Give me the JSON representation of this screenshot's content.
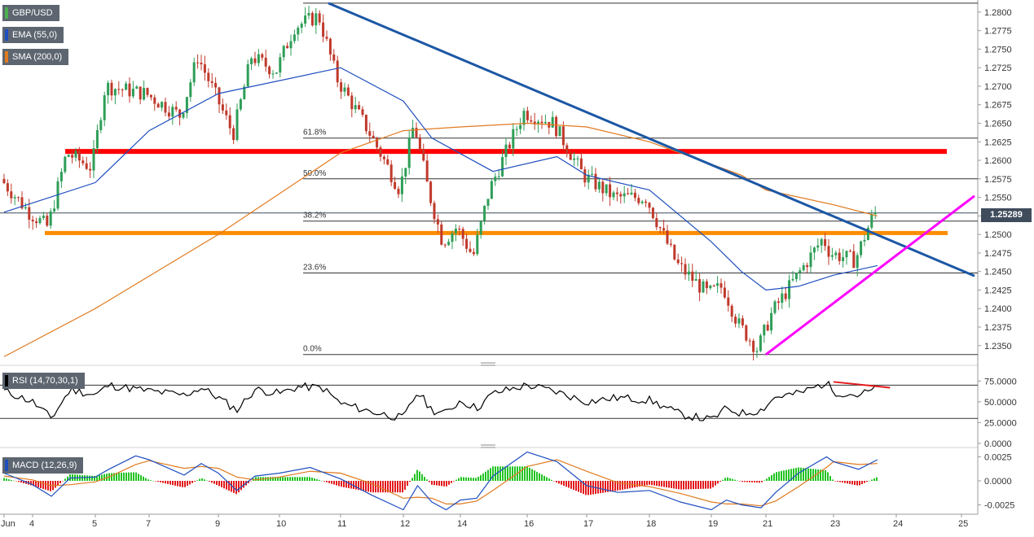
{
  "main_panel": {
    "legend": [
      {
        "label": "GBP/USD",
        "color": "#4caf50"
      },
      {
        "label": "EMA (55,0)",
        "color": "#1f4fbf"
      },
      {
        "label": "SMA (200,0)",
        "color": "#e07a1f"
      }
    ],
    "last_price": "1.25289"
  },
  "rsi_panel": {
    "label": "RSI (14,70,30,1)",
    "color": "#000000"
  },
  "macd_panel": {
    "label": "MACD (12,26,9)",
    "color": "#1f4fbf"
  },
  "colors": {
    "bull_candle": "#2e9e57",
    "bear_candle": "#c0392b",
    "ema": "#1f4fbf",
    "sma": "#e07a1f",
    "trendline_down": "#1c57a5",
    "trendline_up": "#ff00ff",
    "resistance": "#ff0000",
    "support": "#ff8c00",
    "rsi_divergence": "#e31a1c",
    "macd_line": "#1f4fbf",
    "signal_line": "#e07a1f",
    "hist_pos": "#22c322",
    "hist_neg": "#e31a1c"
  },
  "chart_data": [
    {
      "type": "candlestick",
      "series_name": "GBP/USD",
      "x_tick_labels": [
        "Jun",
        "4",
        "5",
        "7",
        "9",
        "10",
        "11",
        "12",
        "14",
        "16",
        "17",
        "18",
        "19",
        "21",
        "23",
        "24",
        "25"
      ],
      "y_ticks": [
        1.235,
        1.2375,
        1.24,
        1.2425,
        1.245,
        1.2475,
        1.25,
        1.2525,
        1.255,
        1.2575,
        1.26,
        1.2625,
        1.265,
        1.2675,
        1.27,
        1.2725,
        1.275,
        1.2775,
        1.28
      ],
      "y_tick_labels": [
        "1.2350",
        "1.2375",
        "1.2400",
        "1.2425",
        "1.2450",
        "1.2475",
        "1.2500",
        "1.2525",
        "1.2550",
        "1.2575",
        "1.2600",
        "1.2625",
        "1.2650",
        "1.2675",
        "1.2700",
        "1.2725",
        "1.2750",
        "1.2775",
        "1.2800"
      ],
      "ylim": [
        1.233,
        1.2813
      ],
      "anchors": [
        {
          "x": "Jun",
          "price": 1.2575
        },
        {
          "x": "4",
          "price": 1.253
        },
        {
          "x": "4.3",
          "price": 1.251
        },
        {
          "x": "4.6",
          "price": 1.261
        },
        {
          "x": "5",
          "price": 1.259
        },
        {
          "x": "5.5",
          "price": 1.27
        },
        {
          "x": "7",
          "price": 1.269
        },
        {
          "x": "8",
          "price": 1.266
        },
        {
          "x": "8.5",
          "price": 1.274
        },
        {
          "x": "9",
          "price": 1.269
        },
        {
          "x": "9.3",
          "price": 1.2635
        },
        {
          "x": "9.6",
          "price": 1.274
        },
        {
          "x": "10",
          "price": 1.272
        },
        {
          "x": "10.3",
          "price": 1.278
        },
        {
          "x": "10.7",
          "price": 1.2795
        },
        {
          "x": "11",
          "price": 1.271
        },
        {
          "x": "11.5",
          "price": 1.264
        },
        {
          "x": "12",
          "price": 1.256
        },
        {
          "x": "12.5",
          "price": 1.265
        },
        {
          "x": "13",
          "price": 1.256
        },
        {
          "x": "13.5",
          "price": 1.249
        },
        {
          "x": "14",
          "price": 1.251
        },
        {
          "x": "14.5",
          "price": 1.247
        },
        {
          "x": "15",
          "price": 1.256
        },
        {
          "x": "16",
          "price": 1.2665
        },
        {
          "x": "16.5",
          "price": 1.265
        },
        {
          "x": "17",
          "price": 1.258
        },
        {
          "x": "17.5",
          "price": 1.255
        },
        {
          "x": "18",
          "price": 1.255
        },
        {
          "x": "18.5",
          "price": 1.246
        },
        {
          "x": "19",
          "price": 1.242
        },
        {
          "x": "19.5",
          "price": 1.243
        },
        {
          "x": "20",
          "price": 1.238
        },
        {
          "x": "20.8",
          "price": 1.2345
        },
        {
          "x": "21.3",
          "price": 1.2395
        },
        {
          "x": "22",
          "price": 1.244
        },
        {
          "x": "22.8",
          "price": 1.2495
        },
        {
          "x": "23",
          "price": 1.2475
        },
        {
          "x": "23.4",
          "price": 1.2465
        },
        {
          "x": "23.7",
          "price": 1.2529
        }
      ],
      "ema_55_anchors": [
        {
          "x": "Jun",
          "price": 1.253
        },
        {
          "x": "5",
          "price": 1.257
        },
        {
          "x": "7",
          "price": 1.264
        },
        {
          "x": "9",
          "price": 1.269
        },
        {
          "x": "11",
          "price": 1.2725
        },
        {
          "x": "12",
          "price": 1.268
        },
        {
          "x": "13",
          "price": 1.263
        },
        {
          "x": "15",
          "price": 1.2585
        },
        {
          "x": "16.5",
          "price": 1.2605
        },
        {
          "x": "17",
          "price": 1.258
        },
        {
          "x": "18",
          "price": 1.256
        },
        {
          "x": "19",
          "price": 1.249
        },
        {
          "x": "20",
          "price": 1.245
        },
        {
          "x": "21",
          "price": 1.2425
        },
        {
          "x": "22",
          "price": 1.243
        },
        {
          "x": "23",
          "price": 1.2445
        },
        {
          "x": "23.7",
          "price": 1.2458
        }
      ],
      "sma_200_anchors": [
        {
          "x": "Jun",
          "price": 1.2335
        },
        {
          "x": "5",
          "price": 1.24
        },
        {
          "x": "9",
          "price": 1.25
        },
        {
          "x": "11",
          "price": 1.261
        },
        {
          "x": "12",
          "price": 1.264
        },
        {
          "x": "14",
          "price": 1.2645
        },
        {
          "x": "16",
          "price": 1.265
        },
        {
          "x": "17",
          "price": 1.2645
        },
        {
          "x": "18",
          "price": 1.2625
        },
        {
          "x": "20",
          "price": 1.258
        },
        {
          "x": "21",
          "price": 1.256
        },
        {
          "x": "23",
          "price": 1.254
        },
        {
          "x": "23.7",
          "price": 1.2525
        }
      ],
      "fibonacci_levels": [
        {
          "label": "61.8%",
          "price": 1.263
        },
        {
          "label": "50.0%",
          "price": 1.2575
        },
        {
          "label": "38.2%",
          "price": 1.2518
        },
        {
          "label": "23.6%",
          "price": 1.2448
        },
        {
          "label": "0.0%",
          "price": 1.2338
        }
      ],
      "fib_100_price": 1.2812,
      "horizontal_levels": [
        {
          "role": "resistance",
          "price": 1.2612
        },
        {
          "role": "support",
          "price": 1.2502
        },
        {
          "role": "last_price",
          "price": 1.25289
        }
      ],
      "trendlines": [
        {
          "role": "downtrend",
          "from": {
            "x": "10.8",
            "price": 1.2812
          },
          "to": {
            "x": "25.2",
            "price": 1.2444
          }
        },
        {
          "role": "uptrend",
          "from": {
            "x": "21",
            "price": 1.2338
          },
          "to": {
            "x": "25.2",
            "price": 1.2552
          }
        }
      ]
    },
    {
      "type": "line",
      "series_name": "RSI (14,70,30,1)",
      "y_ticks": [
        0,
        25,
        50,
        75
      ],
      "y_tick_labels": [
        "0.0000",
        "25.0000",
        "50.0000",
        "75.0000"
      ],
      "ylim": [
        -3,
        88
      ],
      "levels": [
        70,
        30
      ],
      "anchors": [
        {
          "x": "Jun",
          "value": 63
        },
        {
          "x": "4",
          "value": 50
        },
        {
          "x": "4.3",
          "value": 30
        },
        {
          "x": "4.6",
          "value": 65
        },
        {
          "x": "5",
          "value": 58
        },
        {
          "x": "5.5",
          "value": 70
        },
        {
          "x": "7",
          "value": 63
        },
        {
          "x": "8",
          "value": 58
        },
        {
          "x": "8.5",
          "value": 67
        },
        {
          "x": "9",
          "value": 55
        },
        {
          "x": "9.3",
          "value": 40
        },
        {
          "x": "9.6",
          "value": 65
        },
        {
          "x": "10",
          "value": 60
        },
        {
          "x": "10.3",
          "value": 68
        },
        {
          "x": "10.7",
          "value": 67
        },
        {
          "x": "11",
          "value": 48
        },
        {
          "x": "11.5",
          "value": 38
        },
        {
          "x": "12",
          "value": 30
        },
        {
          "x": "12.5",
          "value": 62
        },
        {
          "x": "13",
          "value": 40
        },
        {
          "x": "13.5",
          "value": 36
        },
        {
          "x": "14",
          "value": 52
        },
        {
          "x": "14.5",
          "value": 42
        },
        {
          "x": "15",
          "value": 60
        },
        {
          "x": "16",
          "value": 70
        },
        {
          "x": "16.5",
          "value": 62
        },
        {
          "x": "17",
          "value": 50
        },
        {
          "x": "17.5",
          "value": 55
        },
        {
          "x": "18",
          "value": 52
        },
        {
          "x": "18.5",
          "value": 35
        },
        {
          "x": "19",
          "value": 28
        },
        {
          "x": "19.5",
          "value": 42
        },
        {
          "x": "20",
          "value": 36
        },
        {
          "x": "20.8",
          "value": 40
        },
        {
          "x": "21.3",
          "value": 56
        },
        {
          "x": "22",
          "value": 60
        },
        {
          "x": "22.8",
          "value": 73
        },
        {
          "x": "23",
          "value": 62
        },
        {
          "x": "23.4",
          "value": 58
        },
        {
          "x": "23.7",
          "value": 66
        }
      ],
      "divergence_line": {
        "from": {
          "x": "23",
          "value": 74
        },
        "to": {
          "x": "23.9",
          "value": 67
        }
      }
    },
    {
      "type": "line",
      "series_name": "MACD (12,26,9)",
      "y_ticks": [
        -0.0025,
        0,
        0.0025
      ],
      "y_tick_labels": [
        "-0.0025",
        "0.0000",
        "0.0025"
      ],
      "ylim": [
        -0.0033,
        0.0033
      ],
      "macd_anchors": [
        {
          "x": "Jun",
          "value": 0.0008
        },
        {
          "x": "4",
          "value": -0.0004
        },
        {
          "x": "4.3",
          "value": -0.0016
        },
        {
          "x": "4.6",
          "value": 0.0003
        },
        {
          "x": "5",
          "value": 0.0004
        },
        {
          "x": "5.5",
          "value": 0.0012
        },
        {
          "x": "6.5",
          "value": 0.0026
        },
        {
          "x": "7",
          "value": 0.0022
        },
        {
          "x": "8",
          "value": 0.0006
        },
        {
          "x": "8.5",
          "value": 0.0018
        },
        {
          "x": "9",
          "value": 0.0008
        },
        {
          "x": "9.3",
          "value": -0.001
        },
        {
          "x": "9.6",
          "value": 0.0005
        },
        {
          "x": "10",
          "value": 0.0008
        },
        {
          "x": "10.5",
          "value": 0.0014
        },
        {
          "x": "11",
          "value": 0.0002
        },
        {
          "x": "11.5",
          "value": -0.0015
        },
        {
          "x": "12",
          "value": -0.003
        },
        {
          "x": "12.5",
          "value": -0.0005
        },
        {
          "x": "13",
          "value": -0.0022
        },
        {
          "x": "13.5",
          "value": -0.003
        },
        {
          "x": "14",
          "value": -0.002
        },
        {
          "x": "14.5",
          "value": -0.0018
        },
        {
          "x": "15",
          "value": 0.0005
        },
        {
          "x": "16",
          "value": 0.003
        },
        {
          "x": "16.5",
          "value": 0.002
        },
        {
          "x": "17",
          "value": -0.0005
        },
        {
          "x": "17.5",
          "value": -0.0012
        },
        {
          "x": "18",
          "value": -0.001
        },
        {
          "x": "18.5",
          "value": -0.0022
        },
        {
          "x": "19",
          "value": -0.003
        },
        {
          "x": "19.5",
          "value": -0.002
        },
        {
          "x": "20",
          "value": -0.0025
        },
        {
          "x": "20.8",
          "value": -0.0028
        },
        {
          "x": "21.3",
          "value": -0.0012
        },
        {
          "x": "22",
          "value": 0.0008
        },
        {
          "x": "22.8",
          "value": 0.0025
        },
        {
          "x": "23",
          "value": 0.002
        },
        {
          "x": "23.4",
          "value": 0.0012
        },
        {
          "x": "23.7",
          "value": 0.0022
        }
      ],
      "signal_anchors": [
        {
          "x": "Jun",
          "value": 0.0005
        },
        {
          "x": "4",
          "value": 0.0001
        },
        {
          "x": "4.3",
          "value": -0.0005
        },
        {
          "x": "4.6",
          "value": -0.0004
        },
        {
          "x": "5",
          "value": -0.0001
        },
        {
          "x": "5.5",
          "value": 0.0004
        },
        {
          "x": "6.5",
          "value": 0.0017
        },
        {
          "x": "7",
          "value": 0.0021
        },
        {
          "x": "8",
          "value": 0.0013
        },
        {
          "x": "8.5",
          "value": 0.0015
        },
        {
          "x": "9",
          "value": 0.0013
        },
        {
          "x": "9.3",
          "value": 0.0004
        },
        {
          "x": "9.6",
          "value": 0.0001
        },
        {
          "x": "10",
          "value": 0.0004
        },
        {
          "x": "10.5",
          "value": 0.001
        },
        {
          "x": "11",
          "value": 0.0008
        },
        {
          "x": "11.5",
          "value": -0.0003
        },
        {
          "x": "12",
          "value": -0.0018
        },
        {
          "x": "12.5",
          "value": -0.0017
        },
        {
          "x": "13",
          "value": -0.0018
        },
        {
          "x": "13.5",
          "value": -0.0024
        },
        {
          "x": "14",
          "value": -0.0024
        },
        {
          "x": "14.5",
          "value": -0.0021
        },
        {
          "x": "15",
          "value": -0.001
        },
        {
          "x": "16",
          "value": 0.0015
        },
        {
          "x": "16.5",
          "value": 0.0022
        },
        {
          "x": "17",
          "value": 0.001
        },
        {
          "x": "17.5",
          "value": -0.0002
        },
        {
          "x": "18",
          "value": -0.0006
        },
        {
          "x": "18.5",
          "value": -0.0013
        },
        {
          "x": "19",
          "value": -0.0022
        },
        {
          "x": "19.5",
          "value": -0.0024
        },
        {
          "x": "20",
          "value": -0.0024
        },
        {
          "x": "20.8",
          "value": -0.0026
        },
        {
          "x": "21.3",
          "value": -0.0021
        },
        {
          "x": "22",
          "value": -0.0006
        },
        {
          "x": "22.8",
          "value": 0.0014
        },
        {
          "x": "23",
          "value": 0.002
        },
        {
          "x": "23.4",
          "value": 0.0017
        },
        {
          "x": "23.7",
          "value": 0.0018
        }
      ]
    }
  ]
}
